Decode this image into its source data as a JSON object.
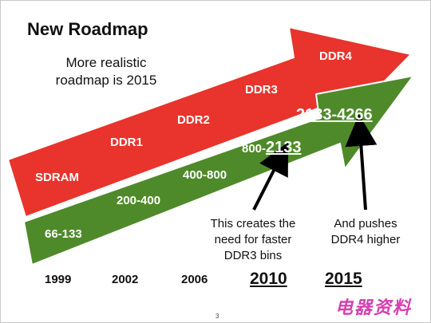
{
  "title": "New Roadmap",
  "note": "More realistic roadmap is 2015",
  "red_arrow": {
    "color": "#e8342c",
    "labels": [
      "SDRAM",
      "DDR1",
      "DDR2",
      "DDR3",
      "DDR4"
    ]
  },
  "green_arrow": {
    "color": "#4f8a2a",
    "labels": [
      "66-133",
      "200-400",
      "400-800"
    ],
    "ddr3_prefix": "800-",
    "ddr3_highlight": "2133",
    "ddr4_range": "2133-4266"
  },
  "callouts": {
    "left": "This creates the need for faster DDR3 bins",
    "right": "And pushes DDR4 higher"
  },
  "years": [
    "1999",
    "2002",
    "2006",
    "2010",
    "2015"
  ],
  "page_number": "3",
  "watermark": "电器资料"
}
